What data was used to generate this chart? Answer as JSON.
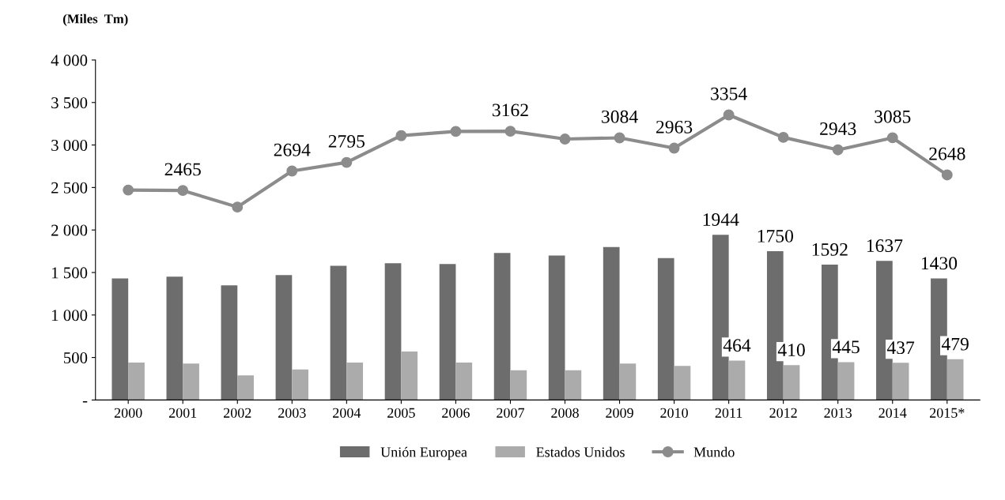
{
  "chart_data": {
    "type": "bar",
    "ylabel": "(Miles  Tm)",
    "categories": [
      "2000",
      "2001",
      "2002",
      "2003",
      "2004",
      "2005",
      "2006",
      "2007",
      "2008",
      "2009",
      "2010",
      "2011",
      "2012",
      "2013",
      "2014",
      "2015*"
    ],
    "series": [
      {
        "name": "Unión Europea",
        "color": "#6d6d6d",
        "values": [
          1430,
          1450,
          1350,
          1470,
          1580,
          1610,
          1600,
          1730,
          1700,
          1800,
          1670,
          1944,
          1750,
          1592,
          1637,
          1430
        ],
        "value_labels": [
          null,
          null,
          null,
          null,
          null,
          null,
          null,
          null,
          null,
          null,
          null,
          "1944",
          "1750",
          "1592",
          "1637",
          "1430"
        ]
      },
      {
        "name": "Estados Unidos",
        "color": "#ababab",
        "values": [
          440,
          430,
          290,
          360,
          440,
          570,
          440,
          350,
          350,
          430,
          400,
          464,
          410,
          445,
          437,
          479
        ],
        "value_labels": [
          null,
          null,
          null,
          null,
          null,
          null,
          null,
          null,
          null,
          null,
          null,
          "464",
          "410",
          "445",
          "437",
          "479"
        ]
      },
      {
        "name": "Mundo",
        "type": "line",
        "color": "#8c8c8c",
        "marker": "circle",
        "line_style": "solid",
        "values": [
          2470,
          2465,
          2270,
          2694,
          2795,
          3110,
          3160,
          3162,
          3070,
          3084,
          2963,
          3354,
          3090,
          2943,
          3085,
          2648
        ],
        "value_labels": [
          null,
          "2465",
          null,
          "2694",
          "2795",
          null,
          null,
          "3162",
          null,
          "3084",
          "2963",
          "3354",
          null,
          "2943",
          "3085",
          "2648"
        ]
      }
    ],
    "ylim": [
      0,
      4000
    ],
    "yticks": [
      {
        "value": 0,
        "label": "-"
      },
      {
        "value": 500,
        "label": "500"
      },
      {
        "value": 1000,
        "label": "1 000"
      },
      {
        "value": 1500,
        "label": "1 500"
      },
      {
        "value": 2000,
        "label": "2 000"
      },
      {
        "value": 2500,
        "label": "2 500"
      },
      {
        "value": 3000,
        "label": "3 000"
      },
      {
        "value": 3500,
        "label": "3 500"
      },
      {
        "value": 4000,
        "label": "4 000"
      }
    ],
    "grid": false,
    "legend": "bottom"
  }
}
